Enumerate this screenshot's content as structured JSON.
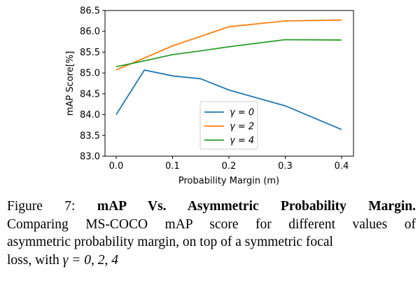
{
  "chart_data": {
    "type": "line",
    "xlabel": "Probability Margin (m)",
    "ylabel": "mAP Score[%]",
    "x": [
      0.0,
      0.05,
      0.1,
      0.15,
      0.2,
      0.3,
      0.4
    ],
    "xlim": [
      -0.015,
      0.415
    ],
    "ylim": [
      83.0,
      86.5
    ],
    "xticks": [
      "0.0",
      "0.1",
      "0.2",
      "0.3",
      "0.4"
    ],
    "yticks": [
      "83.0",
      "83.5",
      "84.0",
      "84.5",
      "85.0",
      "85.5",
      "86.0",
      "86.5"
    ],
    "grid": false,
    "legend_position": "lower-center",
    "series": [
      {
        "name": "γ = 0",
        "color": "#1f77b4",
        "values": [
          84.0,
          85.07,
          84.93,
          84.86,
          84.59,
          84.21,
          83.64
        ]
      },
      {
        "name": "γ = 2",
        "color": "#ff7f0e",
        "values": [
          85.07,
          85.36,
          85.65,
          85.88,
          86.11,
          86.25,
          86.27
        ]
      },
      {
        "name": "γ = 4",
        "color": "#2ca02c",
        "values": [
          85.15,
          85.29,
          85.44,
          85.53,
          85.63,
          85.8,
          85.79
        ]
      }
    ]
  },
  "caption": {
    "label": "Figure 7:",
    "title": "mAP Vs.  Asymmetric Probability Margin.",
    "line2": "Comparing MS-COCO mAP score for different values of",
    "line3": "asymmetric probability margin, on top of a symmetric focal",
    "line4_prefix": "loss, with ",
    "line4_math": "γ = 0, 2, 4"
  }
}
